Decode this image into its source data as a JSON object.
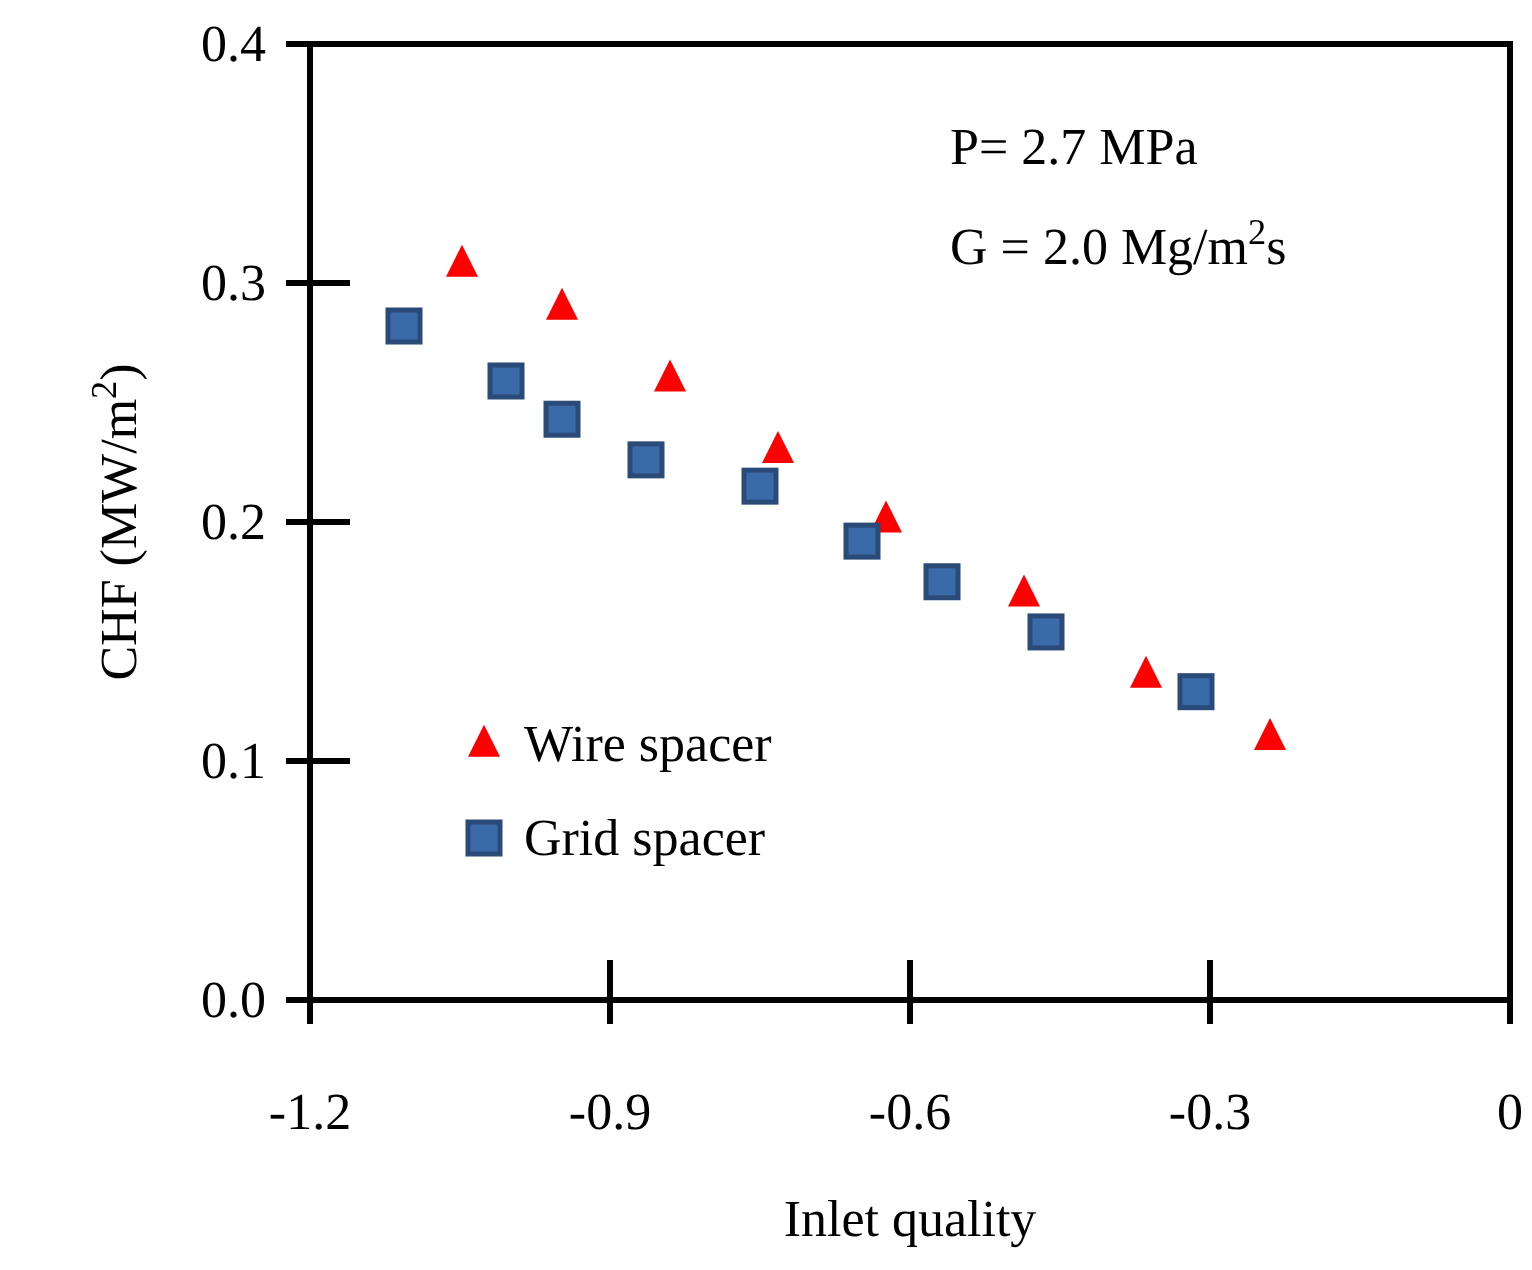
{
  "chart_data": {
    "type": "scatter",
    "xlabel": "Inlet quality",
    "ylabel": "CHF (MW/m$^{2}$)",
    "annotations": [
      "P= 2.7 MPa",
      "G = 2.0 Mg/m$^{2}$s"
    ],
    "xlim": [
      -1.2,
      0
    ],
    "xticks": [
      -1.2,
      -0.9,
      -0.6,
      -0.3,
      0
    ],
    "ylim": [
      0,
      0.4
    ],
    "yticks": [
      {
        "value": 0,
        "label": "0.0"
      },
      0.1,
      0.2,
      0.3,
      0.4
    ],
    "grid": false,
    "legend": "bottom left",
    "series": [
      {
        "name": "Wire spacer",
        "color": "#ff0000",
        "marker": "triangle",
        "x": [
          -1.048,
          -0.948,
          -0.84,
          -0.732,
          -0.624,
          -0.486,
          -0.364,
          -0.24
        ],
        "values": [
          0.308,
          0.29,
          0.26,
          0.23,
          0.201,
          0.17,
          0.136,
          0.11
        ]
      },
      {
        "name": "Grid spacer",
        "color": "#3a6aa8",
        "marker": "square",
        "x": [
          -1.106,
          -1.004,
          -0.948,
          -0.864,
          -0.75,
          -0.648,
          -0.568,
          -0.464,
          -0.314
        ],
        "values": [
          0.282,
          0.259,
          0.243,
          0.226,
          0.215,
          0.192,
          0.175,
          0.154,
          0.129
        ]
      }
    ]
  }
}
